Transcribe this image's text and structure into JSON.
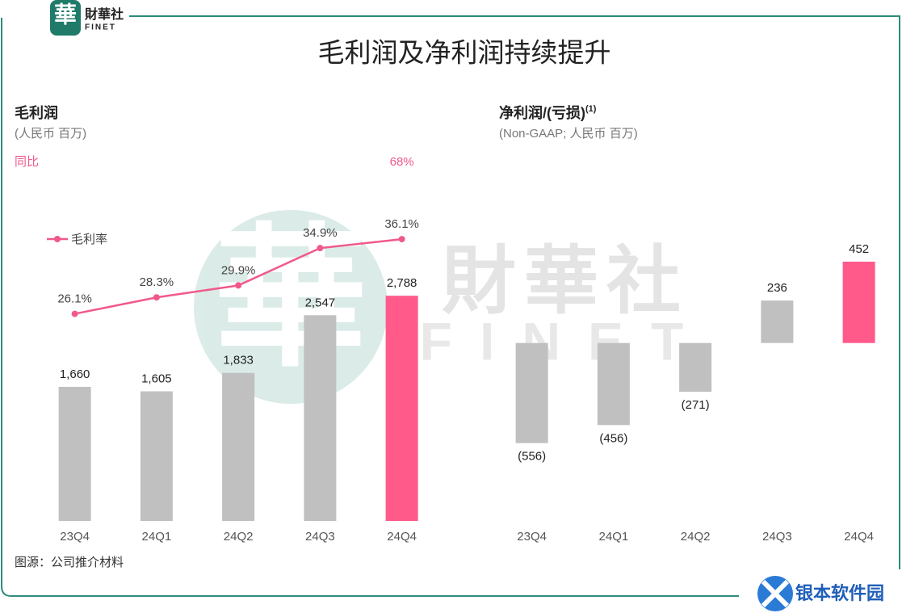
{
  "header": {
    "logo_mark": "華",
    "logo_name": "財華社",
    "logo_sub": "FINET",
    "title": "毛利润及净利润持续提升"
  },
  "watermark": {
    "mark": "華",
    "name": "財華社",
    "sub": "FINET"
  },
  "chart_data": [
    {
      "type": "bar",
      "title": "毛利润",
      "subtitle": "(人民币 百万)",
      "categories": [
        "23Q4",
        "24Q1",
        "24Q2",
        "24Q3",
        "24Q4"
      ],
      "ylim": [
        0,
        3000
      ],
      "y2lim": [
        0,
        40
      ],
      "legend": "left",
      "series": [
        {
          "type": "bar",
          "colors": [
            "#c0c0c0",
            "#c0c0c0",
            "#c0c0c0",
            "#c0c0c0",
            "#ff5a8a"
          ],
          "values": [
            1660,
            1605,
            1833,
            2547,
            2788
          ],
          "value_labels": [
            "1,660",
            "1,605",
            "1,833",
            "2,547",
            "2,788"
          ]
        },
        {
          "type": "line",
          "name": "毛利率",
          "color": "#f0598a",
          "axis": "y2",
          "values": [
            26.1,
            28.3,
            29.9,
            34.9,
            36.1
          ],
          "value_labels": [
            "26.1%",
            "28.3%",
            "29.9%",
            "34.9%",
            "36.1%"
          ]
        }
      ],
      "yoy": {
        "label": "同比",
        "color": "#f0598a",
        "values": [
          null,
          null,
          null,
          null,
          68
        ],
        "value_labels": [
          null,
          null,
          null,
          null,
          "68%"
        ]
      }
    },
    {
      "type": "bar",
      "title": "净利润/(亏损)",
      "title_note": "(1)",
      "subtitle": "(Non-GAAP; 人民币 百万)",
      "categories": [
        "23Q4",
        "24Q1",
        "24Q2",
        "24Q3",
        "24Q4"
      ],
      "ylim": [
        -800,
        600
      ],
      "series": [
        {
          "type": "bar",
          "colors": [
            "#c0c0c0",
            "#c0c0c0",
            "#c0c0c0",
            "#c0c0c0",
            "#ff5a8a"
          ],
          "values": [
            -556,
            -456,
            -271,
            236,
            452
          ],
          "value_labels": [
            "(556)",
            "(456)",
            "(271)",
            "236",
            "452"
          ]
        }
      ]
    }
  ],
  "footer": {
    "source": "图源：公司推介材料",
    "brand": "银本软件园"
  }
}
